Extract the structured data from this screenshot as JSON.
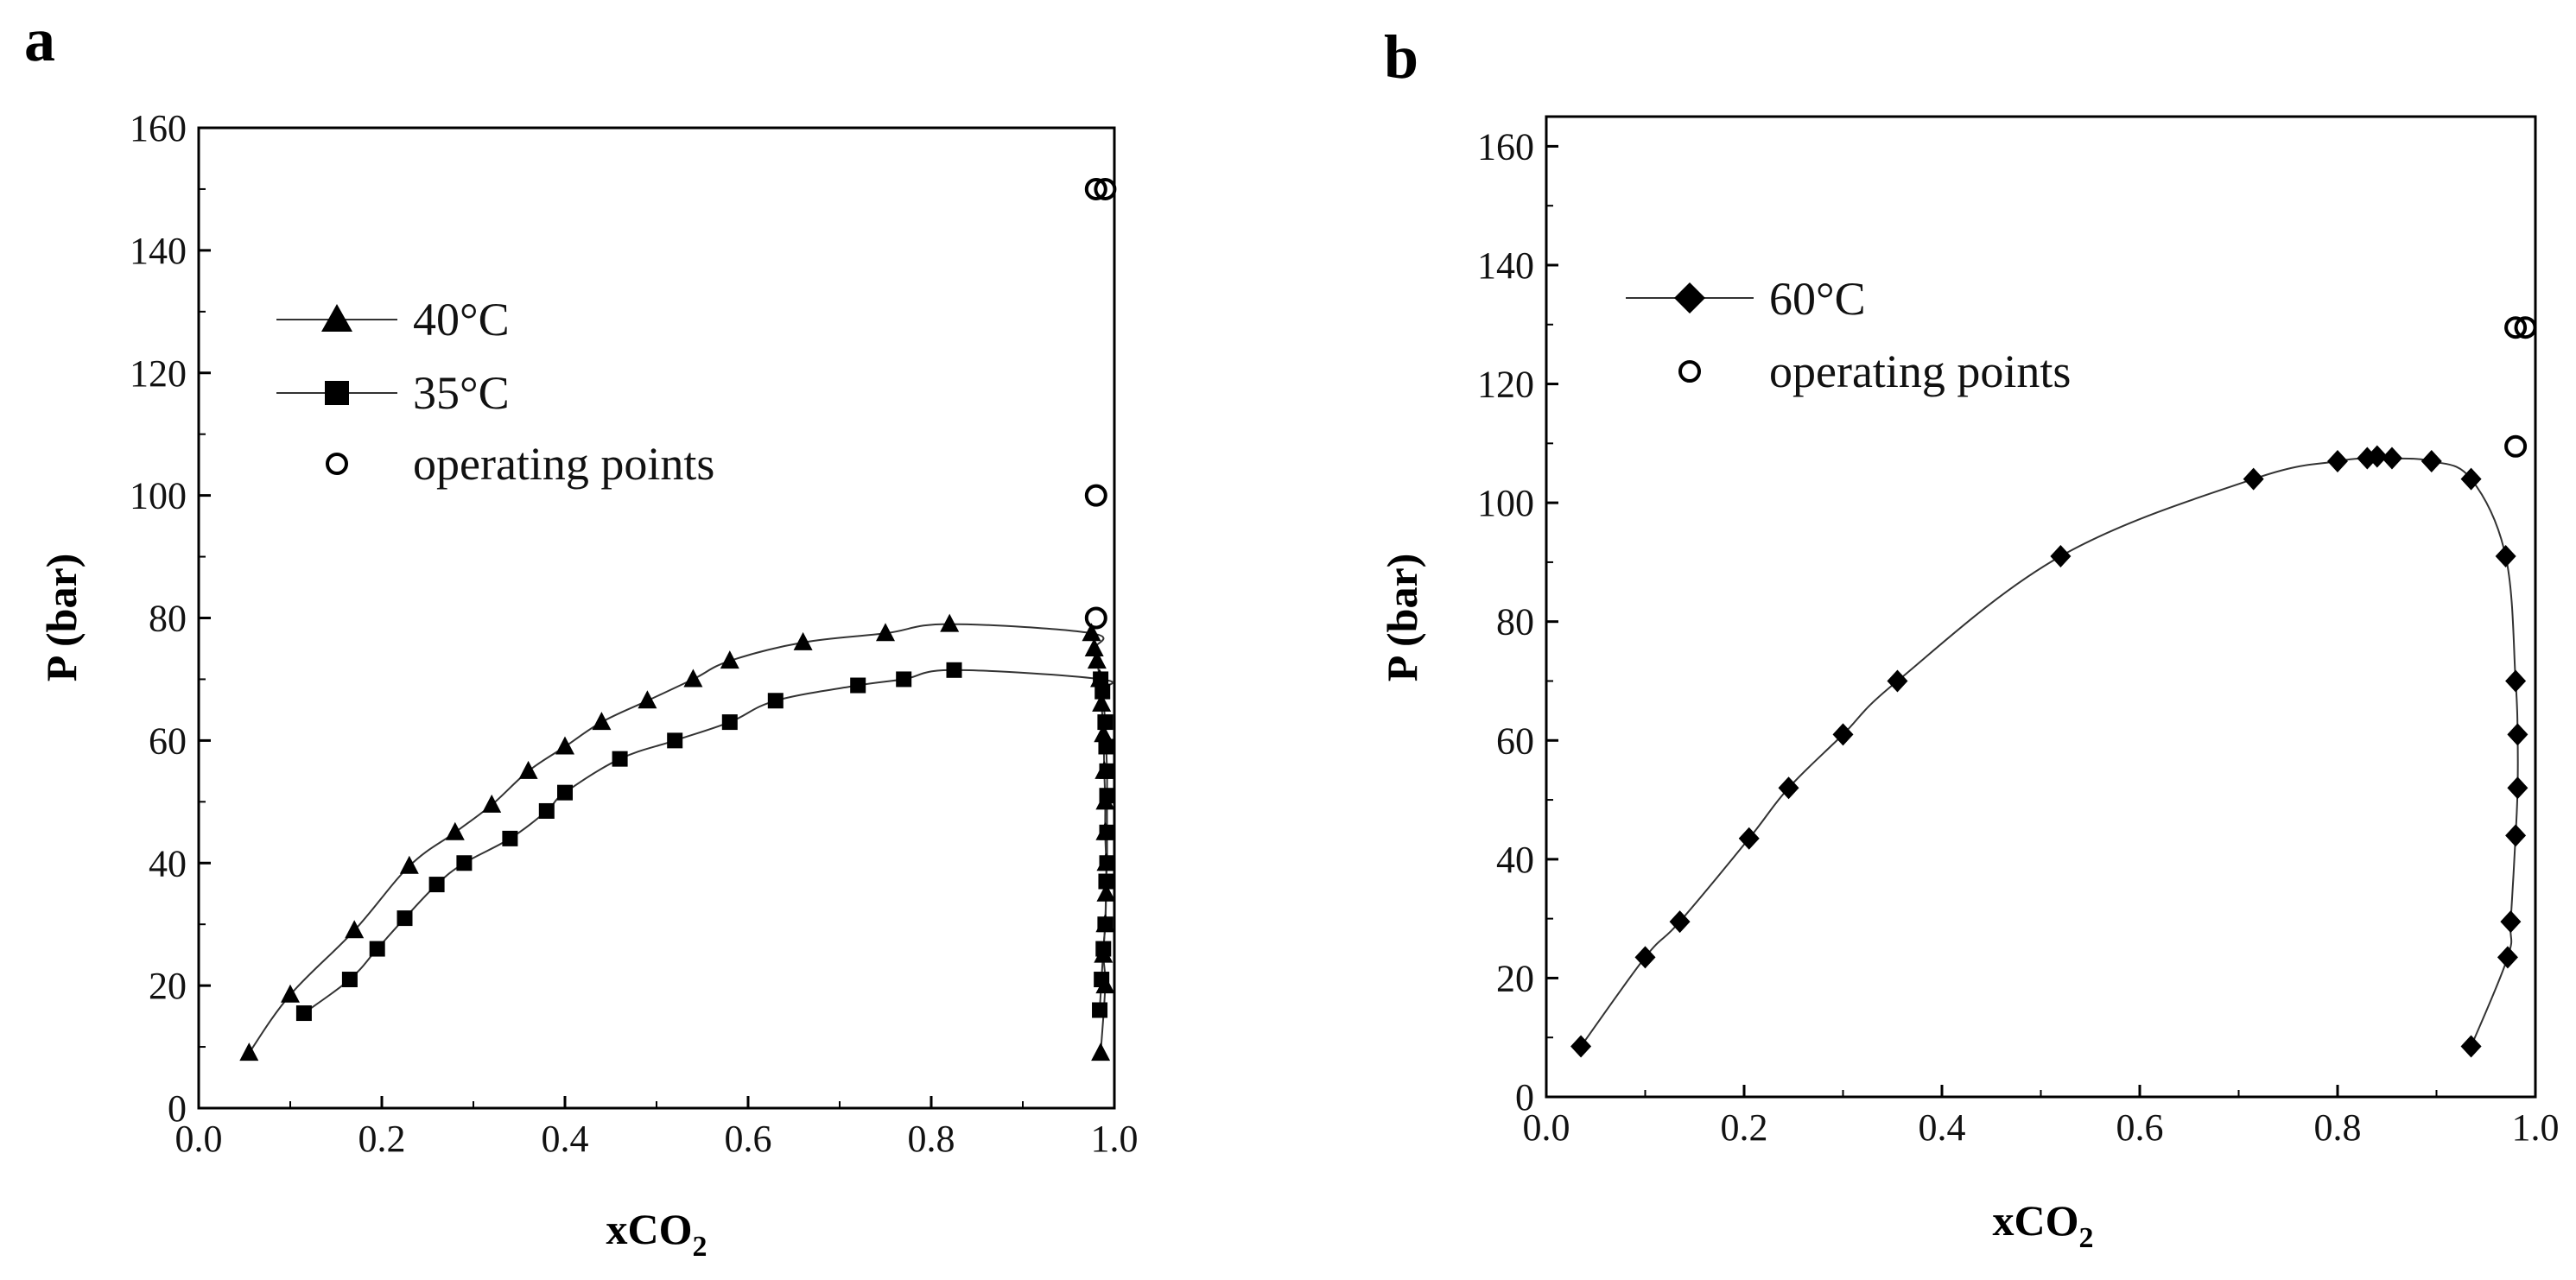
{
  "chart_data": [
    {
      "panel": "a",
      "type": "scatter",
      "xlabel": "xCO",
      "xlabel_sub": "2",
      "ylabel": "P (bar)",
      "xlim": [
        0.0,
        1.0
      ],
      "ylim": [
        0,
        160
      ],
      "xticks": [
        "0.0",
        "0.2",
        "0.4",
        "0.6",
        "0.8",
        "1.0"
      ],
      "yticks": [
        "0",
        "20",
        "40",
        "60",
        "80",
        "100",
        "120",
        "140",
        "160"
      ],
      "grid": false,
      "legend_position": "upper-left",
      "series": [
        {
          "name": "40°C",
          "marker": "triangle",
          "line": true,
          "points": [
            [
              0.055,
              9
            ],
            [
              0.1,
              18.5
            ],
            [
              0.17,
              29
            ],
            [
              0.23,
              39.5
            ],
            [
              0.28,
              45
            ],
            [
              0.32,
              49.5
            ],
            [
              0.36,
              55
            ],
            [
              0.4,
              59
            ],
            [
              0.44,
              63
            ],
            [
              0.49,
              66.5
            ],
            [
              0.54,
              70
            ],
            [
              0.58,
              73
            ],
            [
              0.66,
              76
            ],
            [
              0.75,
              77.5
            ],
            [
              0.82,
              79
            ],
            [
              0.975,
              77.5
            ],
            [
              0.978,
              75
            ],
            [
              0.981,
              73
            ],
            [
              0.984,
              70
            ],
            [
              0.986,
              66
            ],
            [
              0.988,
              61
            ],
            [
              0.989,
              55
            ],
            [
              0.99,
              50
            ],
            [
              0.99,
              45
            ],
            [
              0.991,
              40
            ],
            [
              0.991,
              35
            ],
            [
              0.99,
              30
            ],
            [
              0.988,
              25
            ],
            [
              0.99,
              20
            ],
            [
              0.985,
              9
            ]
          ]
        },
        {
          "name": "35°C",
          "marker": "square",
          "line": true,
          "points": [
            [
              0.115,
              15.5
            ],
            [
              0.165,
              21
            ],
            [
              0.195,
              26
            ],
            [
              0.225,
              31
            ],
            [
              0.26,
              36.5
            ],
            [
              0.29,
              40
            ],
            [
              0.34,
              44
            ],
            [
              0.38,
              48.5
            ],
            [
              0.4,
              51.5
            ],
            [
              0.46,
              57
            ],
            [
              0.52,
              60
            ],
            [
              0.58,
              63
            ],
            [
              0.63,
              66.5
            ],
            [
              0.72,
              69
            ],
            [
              0.77,
              70
            ],
            [
              0.825,
              71.5
            ],
            [
              0.985,
              70
            ],
            [
              0.987,
              68
            ],
            [
              0.99,
              63
            ],
            [
              0.991,
              59
            ],
            [
              0.992,
              55
            ],
            [
              0.992,
              51
            ],
            [
              0.992,
              45
            ],
            [
              0.992,
              40
            ],
            [
              0.991,
              37
            ],
            [
              0.99,
              30
            ],
            [
              0.988,
              26
            ],
            [
              0.986,
              21
            ],
            [
              0.984,
              16
            ]
          ]
        },
        {
          "name": "operating points",
          "marker": "open-circle",
          "line": false,
          "points": [
            [
              0.98,
              150
            ],
            [
              0.99,
              150
            ],
            [
              0.98,
              100
            ],
            [
              0.98,
              80
            ]
          ]
        }
      ]
    },
    {
      "panel": "b",
      "type": "scatter",
      "xlabel": "xCO",
      "xlabel_sub": "2",
      "ylabel": "P (bar)",
      "xlim": [
        0.0,
        1.0
      ],
      "ylim": [
        0,
        165
      ],
      "xticks": [
        "0.0",
        "0.2",
        "0.4",
        "0.6",
        "0.8",
        "1.0"
      ],
      "yticks": [
        "0",
        "20",
        "40",
        "60",
        "80",
        "100",
        "120",
        "140",
        "160"
      ],
      "grid": false,
      "legend_position": "upper-left",
      "series": [
        {
          "name": "60°C",
          "marker": "diamond",
          "line": true,
          "points": [
            [
              0.035,
              8.5
            ],
            [
              0.1,
              23.5
            ],
            [
              0.135,
              29.5
            ],
            [
              0.205,
              43.5
            ],
            [
              0.245,
              52
            ],
            [
              0.3,
              61
            ],
            [
              0.355,
              70
            ],
            [
              0.52,
              91
            ],
            [
              0.715,
              104
            ],
            [
              0.8,
              107
            ],
            [
              0.83,
              107.5
            ],
            [
              0.84,
              107.8
            ],
            [
              0.855,
              107.5
            ],
            [
              0.895,
              107
            ],
            [
              0.935,
              104
            ],
            [
              0.97,
              91
            ],
            [
              0.98,
              70
            ],
            [
              0.982,
              61
            ],
            [
              0.982,
              52
            ],
            [
              0.98,
              44
            ],
            [
              0.975,
              29.5
            ],
            [
              0.972,
              23.5
            ],
            [
              0.935,
              8.5
            ]
          ]
        },
        {
          "name": "operating points",
          "marker": "open-circle",
          "line": false,
          "points": [
            [
              0.98,
              129.5
            ],
            [
              0.99,
              129.5
            ],
            [
              0.98,
              109.5
            ]
          ]
        }
      ]
    }
  ]
}
